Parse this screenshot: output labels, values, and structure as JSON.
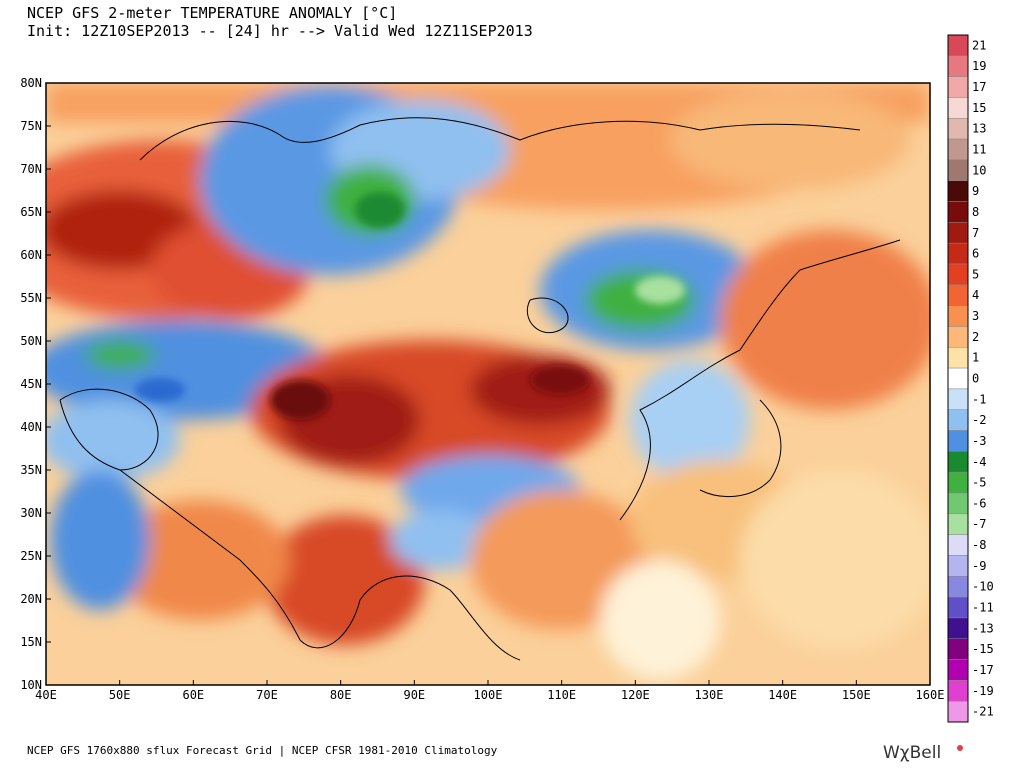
{
  "header": {
    "title": "NCEP GFS 2-meter TEMPERATURE ANOMALY [°C]",
    "subtitle": "Init: 12Z10SEP2013 -- [24] hr --> Valid Wed 12Z11SEP2013"
  },
  "map": {
    "lat_labels": [
      "80N",
      "75N",
      "70N",
      "65N",
      "60N",
      "55N",
      "50N",
      "45N",
      "40N",
      "35N",
      "30N",
      "25N",
      "20N",
      "15N",
      "10N"
    ],
    "lon_labels": [
      "40E",
      "50E",
      "60E",
      "70E",
      "80E",
      "90E",
      "100E",
      "110E",
      "120E",
      "130E",
      "140E",
      "150E",
      "160E"
    ]
  },
  "colorbar": {
    "labels": [
      "21",
      "19",
      "17",
      "15",
      "13",
      "11",
      "10",
      "9",
      "8",
      "7",
      "6",
      "5",
      "4",
      "3",
      "2",
      "1",
      "0",
      "-1",
      "-2",
      "-3",
      "-4",
      "-5",
      "-6",
      "-7",
      "-8",
      "-9",
      "-10",
      "-11",
      "-13",
      "-15",
      "-17",
      "-19",
      "-21"
    ],
    "colors": [
      "#d84858",
      "#e87880",
      "#f0a8a8",
      "#f8d8d4",
      "#e0b8b0",
      "#c09890",
      "#a07870",
      "#4a0a08",
      "#780c0a",
      "#a01a12",
      "#c42a18",
      "#e24020",
      "#f26434",
      "#f89050",
      "#fbb878",
      "#fde2a8",
      "#ffffff",
      "#c8e0f8",
      "#90c0f0",
      "#5090e0",
      "#1a8a30",
      "#40b040",
      "#70c870",
      "#a8e0a0",
      "#dcdcf8",
      "#b4b4f0",
      "#8888e0",
      "#6050c8",
      "#401090",
      "#800080",
      "#b000b0",
      "#e040d0",
      "#f098e8"
    ]
  },
  "footer": {
    "source": "NCEP GFS 1760x880 sflux Forecast Grid | NCEP CFSR 1981-2010 Climatology",
    "brand": "WχBell"
  }
}
